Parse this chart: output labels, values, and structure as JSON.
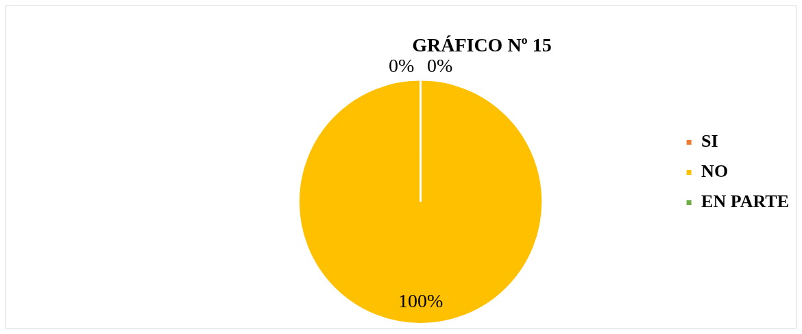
{
  "chart_data": {
    "type": "pie",
    "title": "GRÁFICO Nº 15",
    "categories": [
      "SI",
      "NO",
      "EN PARTE"
    ],
    "values": [
      0,
      100,
      0
    ],
    "value_labels": [
      "0%",
      "100%",
      "0%"
    ],
    "colors": [
      "#ed7d31",
      "#ffc000",
      "#70ad47"
    ],
    "legend": "right"
  }
}
